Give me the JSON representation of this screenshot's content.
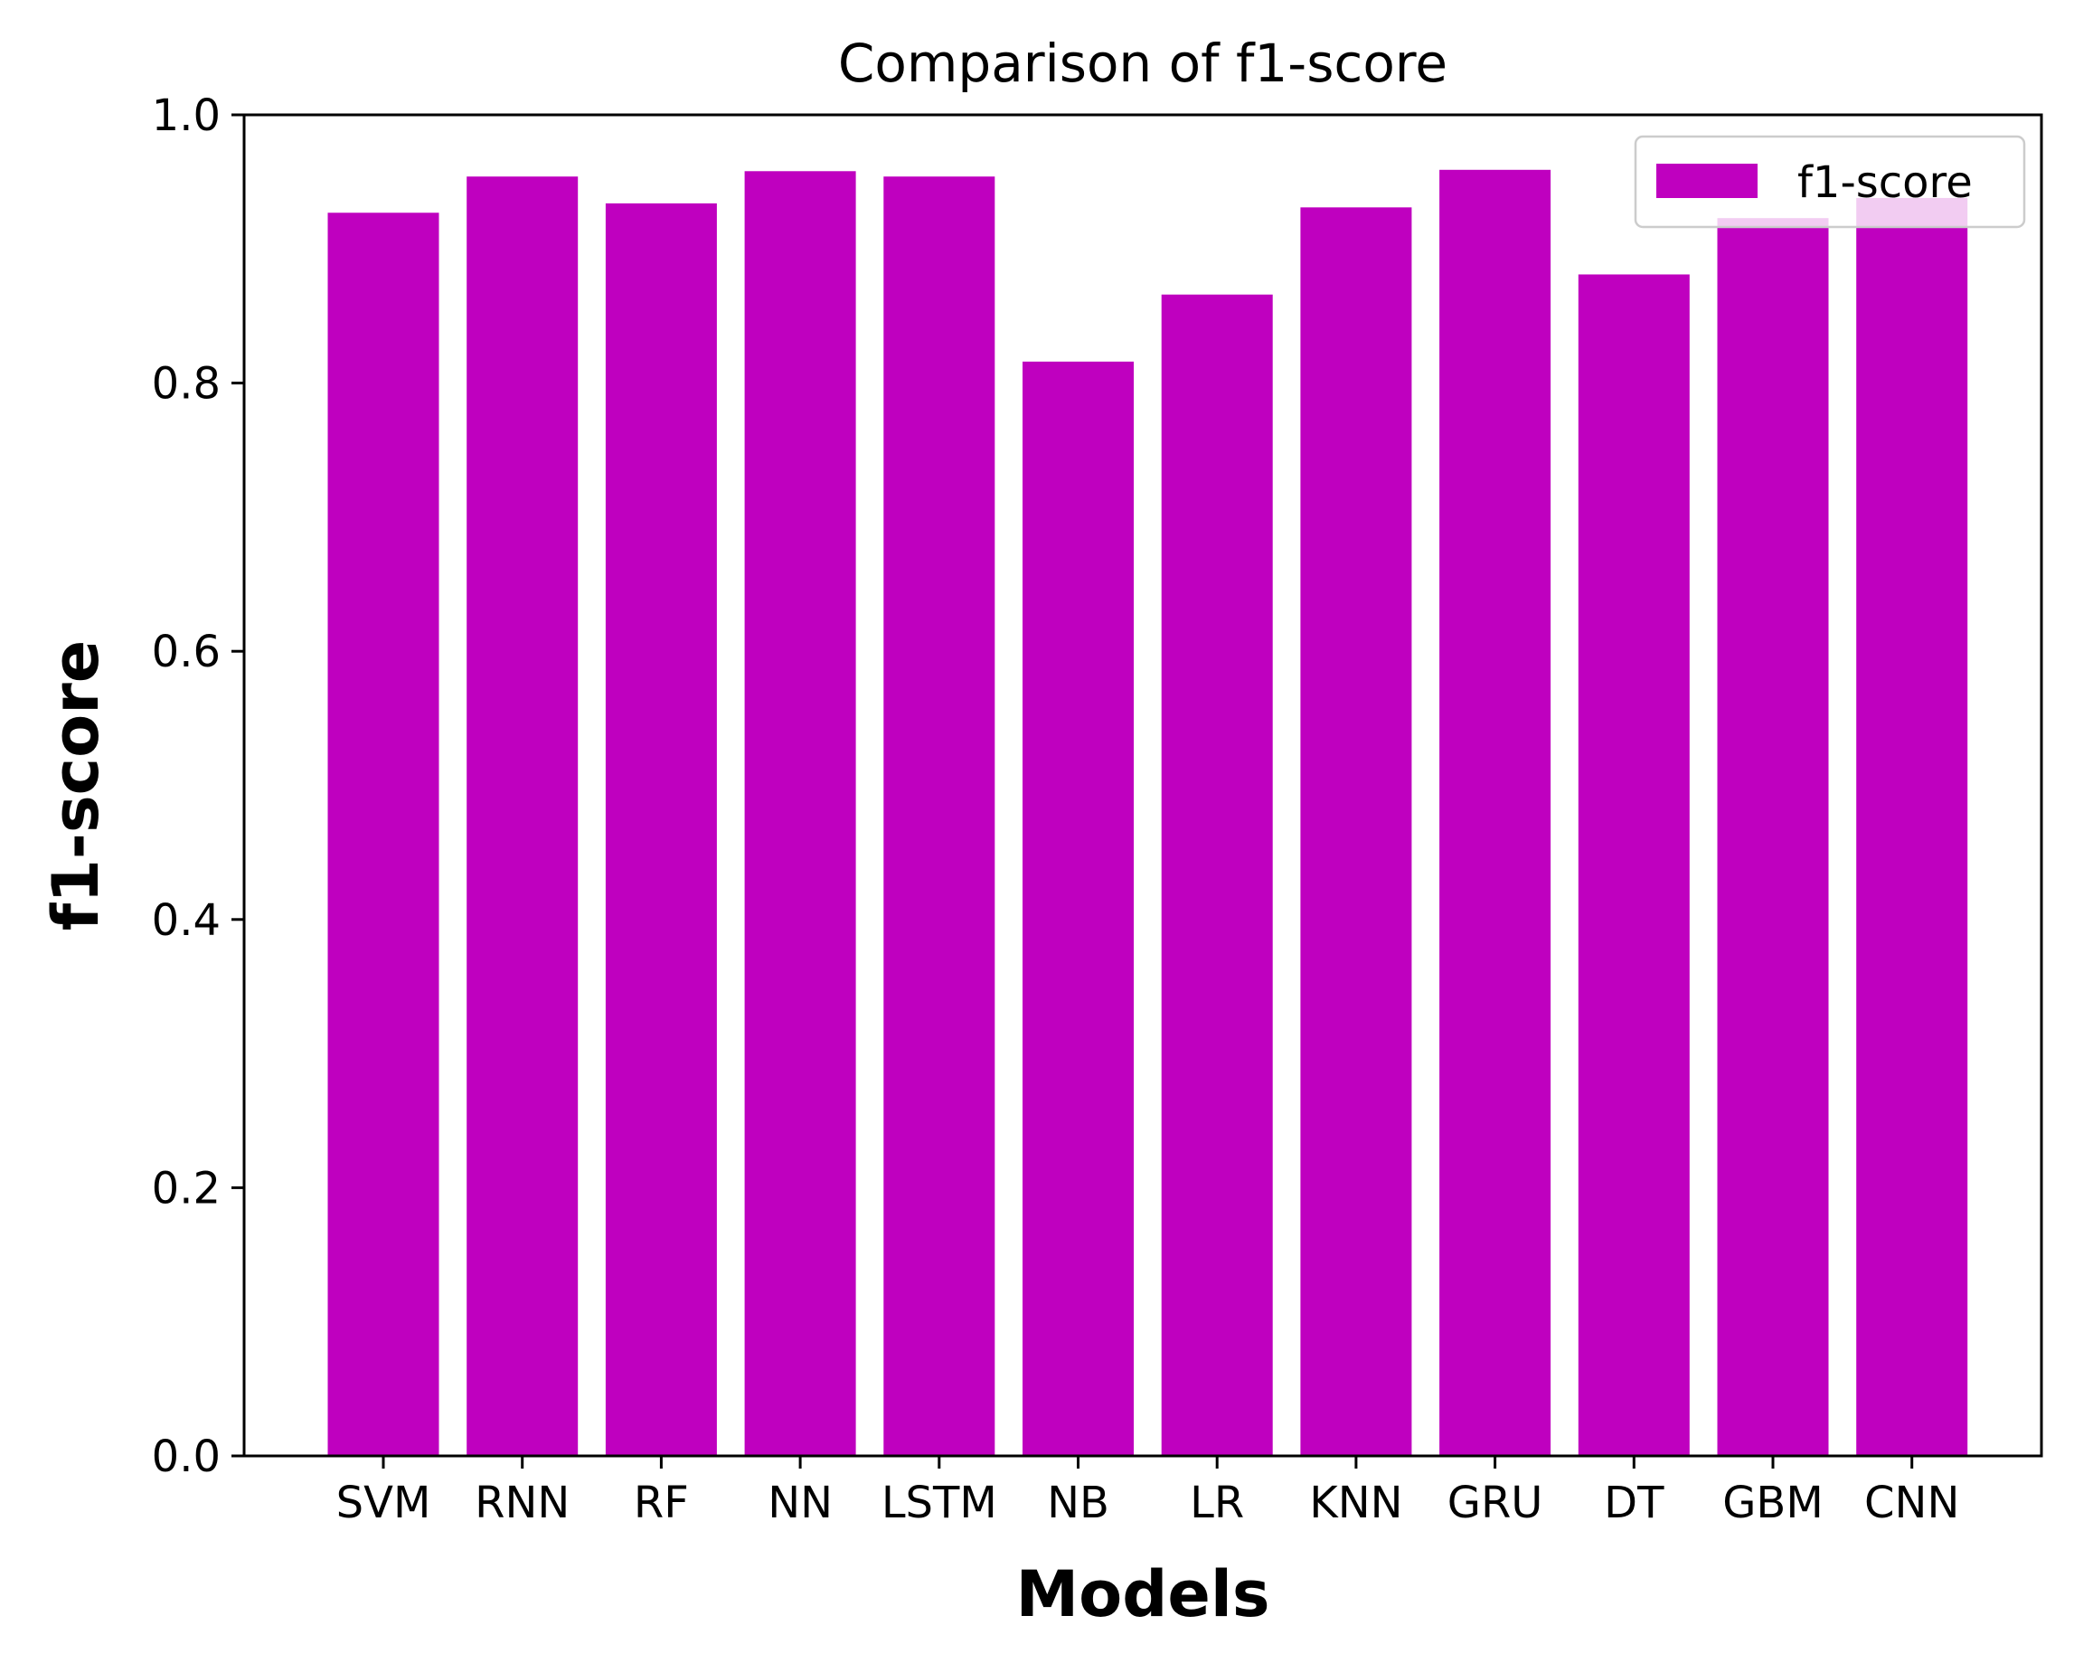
{
  "chart_data": {
    "type": "bar",
    "title": "Comparison of f1-score",
    "xlabel": "Models",
    "ylabel": "f1-score",
    "categories": [
      "SVM",
      "RNN",
      "RF",
      "NN",
      "LSTM",
      "NB",
      "LR",
      "KNN",
      "GRU",
      "DT",
      "GBM",
      "CNN"
    ],
    "series": [
      {
        "name": "f1-score",
        "color": "#bf00bf",
        "values": [
          0.927,
          0.954,
          0.934,
          0.958,
          0.954,
          0.816,
          0.866,
          0.931,
          0.959,
          0.881,
          0.923,
          0.938
        ]
      }
    ],
    "ylim": [
      0.0,
      1.0
    ],
    "yticks": [
      "0.0",
      "0.2",
      "0.4",
      "0.6",
      "0.8",
      "1.0"
    ],
    "grid": false,
    "legend_position": "upper right"
  }
}
